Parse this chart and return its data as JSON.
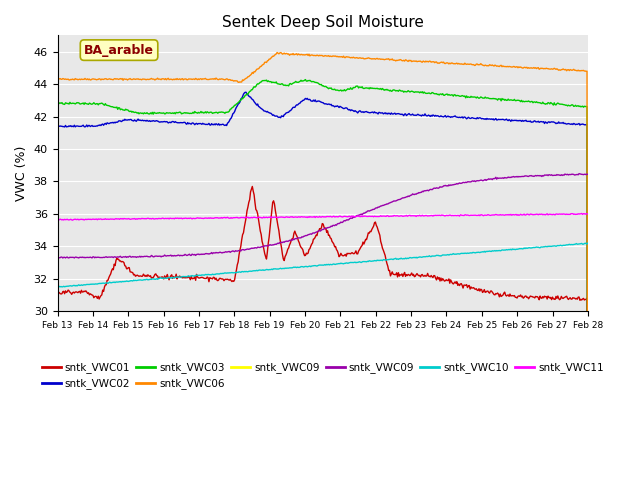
{
  "title": "Sentek Deep Soil Moisture",
  "ylabel": "VWC (%)",
  "ylim": [
    30,
    47
  ],
  "annotation": "BA_arable",
  "background_color": "#e8e8e8",
  "series": {
    "sntk_VWC01": {
      "color": "#cc0000",
      "label": "sntk_VWC01"
    },
    "sntk_VWC02": {
      "color": "#0000cc",
      "label": "sntk_VWC02"
    },
    "sntk_VWC03": {
      "color": "#00cc00",
      "label": "sntk_VWC03"
    },
    "sntk_VWC06": {
      "color": "#ff8800",
      "label": "sntk_VWC06"
    },
    "sntk_VWC09_yellow": {
      "color": "#ffff00",
      "label": "sntk_VWC09"
    },
    "sntk_VWC09_purple": {
      "color": "#9900aa",
      "label": "sntk_VWC09"
    },
    "sntk_VWC10": {
      "color": "#00cccc",
      "label": "sntk_VWC10"
    },
    "sntk_VWC11": {
      "color": "#ff00ff",
      "label": "sntk_VWC11"
    }
  },
  "xtick_labels": [
    "Feb 13",
    "Feb 14",
    "Feb 15",
    "Feb 16",
    "Feb 17",
    "Feb 18",
    "Feb 19",
    "Feb 20",
    "Feb 21",
    "Feb 22",
    "Feb 23",
    "Feb 24",
    "Feb 25",
    "Feb 26",
    "Feb 27",
    "Feb 28"
  ],
  "yticks": [
    30,
    32,
    34,
    36,
    38,
    40,
    42,
    44,
    46
  ]
}
